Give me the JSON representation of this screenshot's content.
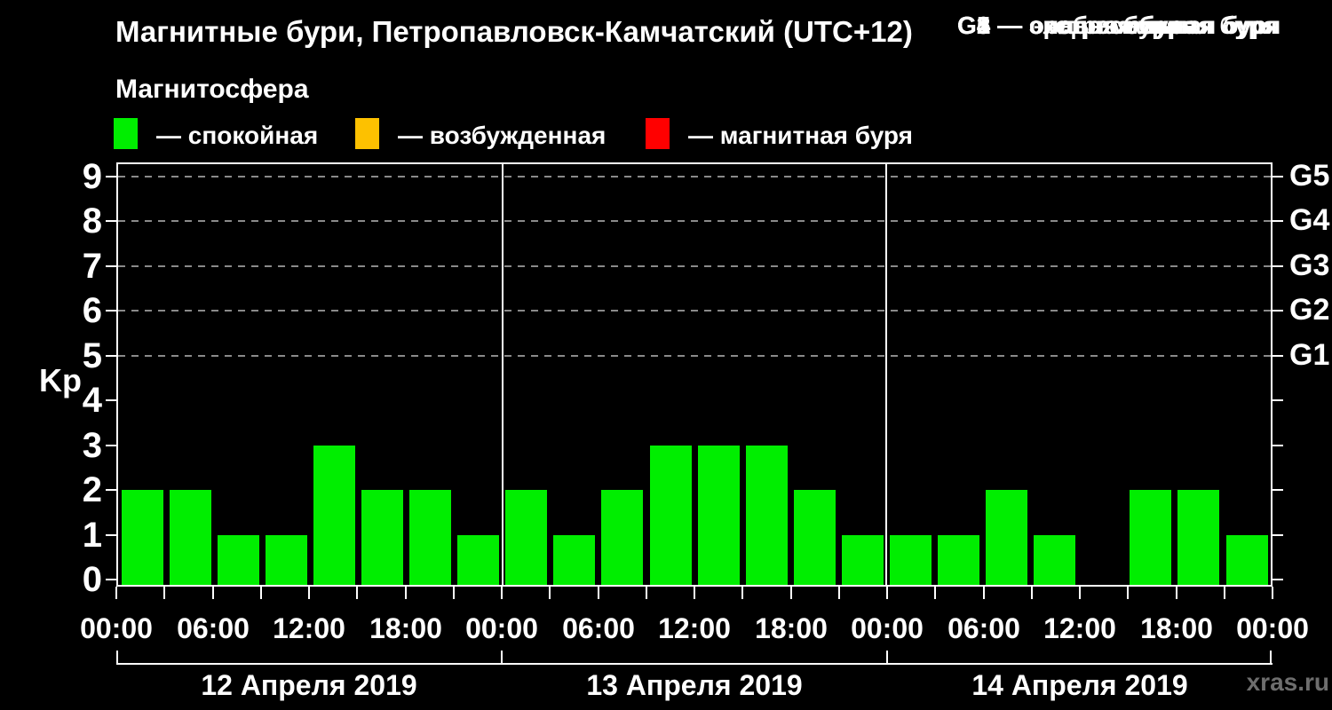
{
  "header": {
    "title": "Магнитные бури, Петропавловск-Камчатский (UTC+12)",
    "subtitle": "Магнитосфера"
  },
  "legend": {
    "items": [
      {
        "name": "quiet",
        "label": "— спокойная",
        "color": "#00ee00"
      },
      {
        "name": "excited",
        "label": "— возбужденная",
        "color": "#fdc100"
      },
      {
        "name": "storm",
        "label": "— магнитная буря",
        "color": "#ff0000"
      }
    ]
  },
  "storm_legend": {
    "lines": [
      "G1 — слабая буря",
      "G2 — средняя буря",
      "G3 — сильная буря",
      "G4 — очень сильная буря",
      "G5 — экстремальная буря"
    ]
  },
  "chart_data": {
    "type": "bar",
    "title": "Магнитные бури, Петропавловск-Камчатский (UTC+12)",
    "ylabel": "Kp",
    "xlabel": "",
    "ylim": [
      0,
      9.4
    ],
    "yticks": [
      0,
      1,
      2,
      3,
      4,
      5,
      6,
      7,
      8,
      9
    ],
    "grid_levels": [
      5,
      6,
      7,
      8,
      9
    ],
    "grid_on": true,
    "right_axis": [
      {
        "value": 5,
        "label": "G1"
      },
      {
        "value": 6,
        "label": "G2"
      },
      {
        "value": 7,
        "label": "G3"
      },
      {
        "value": 8,
        "label": "G4"
      },
      {
        "value": 9,
        "label": "G5"
      }
    ],
    "x_tick_labels": [
      "00:00",
      "06:00",
      "12:00",
      "18:00",
      "00:00",
      "06:00",
      "12:00",
      "18:00",
      "00:00",
      "06:00",
      "12:00",
      "18:00",
      "00:00"
    ],
    "hours_per_bar": 3,
    "days": [
      {
        "date": "12 Апреля 2019",
        "kp": [
          2,
          2,
          1,
          1,
          3,
          2,
          2,
          1
        ]
      },
      {
        "date": "13 Апреля 2019",
        "kp": [
          2,
          1,
          2,
          3,
          3,
          3,
          2,
          1
        ]
      },
      {
        "date": "14 Апреля 2019",
        "kp": [
          1,
          1,
          2,
          1,
          0,
          2,
          2,
          1
        ]
      }
    ],
    "bar_color": "#00ee00"
  },
  "watermark": "xras.ru",
  "colors": {
    "background": "#000000",
    "text": "#ffffff",
    "quiet_green": "#00ee00",
    "excited_orange": "#fdc100",
    "storm_red": "#ff0000",
    "grid": "#8a8a8a",
    "watermark": "#6e6e6e"
  }
}
